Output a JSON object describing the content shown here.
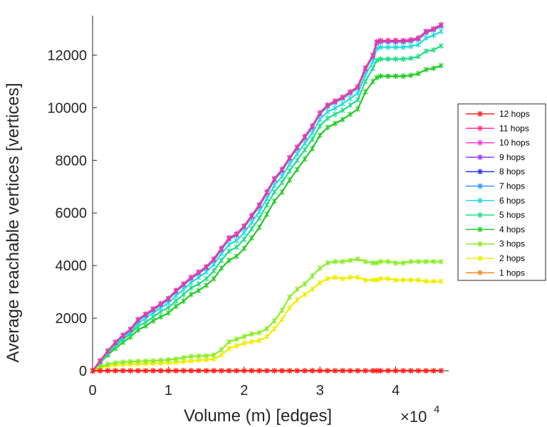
{
  "chart_data": {
    "type": "line",
    "title": "",
    "xlabel": "Volume (m) [edges]",
    "ylabel": "Average reachable vertices [vertices]",
    "x_multiplier_base": "×10",
    "x_multiplier_exp": "4",
    "xlim": [
      0,
      4.7
    ],
    "ylim": [
      0,
      13500
    ],
    "xticks": [
      0,
      1,
      2,
      3,
      4
    ],
    "xtick_labels": [
      "0",
      "1",
      "2",
      "3",
      "4"
    ],
    "yticks": [
      0,
      2000,
      4000,
      6000,
      8000,
      10000,
      12000
    ],
    "ytick_labels": [
      "0",
      "2000",
      "4000",
      "6000",
      "8000",
      "10000",
      "12000"
    ],
    "x": [
      0,
      0.1,
      0.2,
      0.3,
      0.4,
      0.5,
      0.6,
      0.7,
      0.8,
      0.9,
      1.0,
      1.1,
      1.2,
      1.3,
      1.4,
      1.5,
      1.6,
      1.7,
      1.8,
      1.9,
      2.0,
      2.1,
      2.2,
      2.3,
      2.4,
      2.5,
      2.6,
      2.7,
      2.8,
      2.9,
      3.0,
      3.1,
      3.2,
      3.3,
      3.4,
      3.5,
      3.6,
      3.7,
      3.75,
      3.8,
      3.9,
      4.0,
      4.1,
      4.2,
      4.3,
      4.4,
      4.5,
      4.6
    ],
    "legend_position": "right",
    "series": [
      {
        "name": "12 hops",
        "color": "#ff2020",
        "values": [
          0,
          0,
          0,
          0,
          0,
          0,
          0,
          0,
          0,
          0,
          0,
          0,
          0,
          0,
          0,
          0,
          0,
          0,
          0,
          0,
          0,
          0,
          0,
          0,
          0,
          0,
          0,
          0,
          0,
          0,
          0,
          0,
          0,
          0,
          0,
          0,
          0,
          0,
          0,
          0,
          0,
          0,
          0,
          0,
          0,
          0,
          0,
          0
        ]
      },
      {
        "name": "11 hops",
        "color": "#ff3399",
        "values": [
          0,
          380,
          750,
          1080,
          1350,
          1580,
          1950,
          2150,
          2350,
          2550,
          2750,
          3050,
          3300,
          3550,
          3750,
          3950,
          4250,
          4650,
          5050,
          5200,
          5500,
          5900,
          6300,
          6800,
          7300,
          7650,
          8100,
          8500,
          8900,
          9300,
          9800,
          10100,
          10250,
          10400,
          10600,
          10800,
          11500,
          12000,
          12500,
          12550,
          12550,
          12550,
          12550,
          12580,
          12650,
          12900,
          13000,
          13150
        ]
      },
      {
        "name": "10 hops",
        "color": "#ee33ee",
        "values": [
          0,
          380,
          750,
          1080,
          1350,
          1580,
          1950,
          2150,
          2350,
          2550,
          2750,
          3050,
          3300,
          3550,
          3750,
          3950,
          4250,
          4650,
          5050,
          5200,
          5500,
          5900,
          6300,
          6800,
          7300,
          7650,
          8100,
          8500,
          8900,
          9300,
          9800,
          10100,
          10250,
          10400,
          10600,
          10800,
          11500,
          12000,
          12500,
          12550,
          12550,
          12550,
          12550,
          12580,
          12650,
          12900,
          13000,
          13150
        ]
      },
      {
        "name": "9 hops",
        "color": "#9933ff",
        "values": [
          0,
          380,
          750,
          1080,
          1350,
          1580,
          1950,
          2150,
          2350,
          2550,
          2750,
          3050,
          3300,
          3550,
          3750,
          3950,
          4250,
          4650,
          5050,
          5200,
          5500,
          5900,
          6300,
          6800,
          7300,
          7650,
          8100,
          8500,
          8900,
          9300,
          9800,
          10100,
          10250,
          10400,
          10600,
          10800,
          11500,
          12000,
          12500,
          12550,
          12550,
          12550,
          12550,
          12580,
          12650,
          12900,
          13000,
          13150
        ]
      },
      {
        "name": "8 hops",
        "color": "#2233ee",
        "values": [
          0,
          380,
          750,
          1080,
          1350,
          1580,
          1950,
          2150,
          2350,
          2550,
          2750,
          3050,
          3300,
          3550,
          3750,
          3950,
          4250,
          4650,
          5050,
          5200,
          5500,
          5900,
          6300,
          6800,
          7300,
          7650,
          8100,
          8500,
          8900,
          9300,
          9800,
          10100,
          10250,
          10400,
          10600,
          10800,
          11500,
          12000,
          12500,
          12550,
          12550,
          12550,
          12550,
          12580,
          12650,
          12900,
          13000,
          13150
        ]
      },
      {
        "name": "7 hops",
        "color": "#3399ff",
        "values": [
          0,
          370,
          740,
          1060,
          1320,
          1550,
          1900,
          2100,
          2300,
          2500,
          2700,
          3000,
          3250,
          3500,
          3700,
          3900,
          4200,
          4600,
          5000,
          5150,
          5450,
          5850,
          6250,
          6750,
          7250,
          7600,
          8050,
          8450,
          8850,
          9250,
          9750,
          10050,
          10200,
          10350,
          10550,
          10750,
          11450,
          11950,
          12450,
          12500,
          12500,
          12500,
          12500,
          12530,
          12600,
          12850,
          12950,
          13100
        ]
      },
      {
        "name": "6 hops",
        "color": "#22dddd",
        "values": [
          0,
          350,
          700,
          1000,
          1250,
          1480,
          1800,
          2000,
          2200,
          2400,
          2580,
          2850,
          3100,
          3350,
          3550,
          3750,
          4050,
          4450,
          4800,
          4950,
          5250,
          5650,
          6050,
          6550,
          7050,
          7400,
          7850,
          8250,
          8650,
          9050,
          9550,
          9850,
          9980,
          10150,
          10350,
          10550,
          11250,
          11750,
          12250,
          12300,
          12300,
          12300,
          12300,
          12330,
          12400,
          12650,
          12750,
          12900
        ]
      },
      {
        "name": "5 hops",
        "color": "#22dd88",
        "values": [
          0,
          330,
          650,
          940,
          1180,
          1400,
          1700,
          1850,
          2050,
          2250,
          2400,
          2650,
          2900,
          3150,
          3300,
          3500,
          3800,
          4200,
          4550,
          4700,
          5000,
          5400,
          5800,
          6300,
          6800,
          7150,
          7600,
          8000,
          8400,
          8800,
          9300,
          9600,
          9750,
          9900,
          10100,
          10300,
          11000,
          11500,
          11800,
          11850,
          11850,
          11850,
          11850,
          11880,
          11950,
          12150,
          12200,
          12350
        ]
      },
      {
        "name": "4 hops",
        "color": "#22cc22",
        "values": [
          0,
          300,
          600,
          850,
          1080,
          1280,
          1550,
          1700,
          1900,
          2050,
          2200,
          2450,
          2650,
          2900,
          3050,
          3250,
          3500,
          3900,
          4200,
          4350,
          4650,
          5050,
          5450,
          5950,
          6450,
          6800,
          7250,
          7650,
          8050,
          8450,
          8950,
          9250,
          9400,
          9550,
          9750,
          9950,
          10600,
          11000,
          11150,
          11200,
          11200,
          11200,
          11200,
          11230,
          11300,
          11450,
          11500,
          11600
        ]
      },
      {
        "name": "3 hops",
        "color": "#88ee22",
        "values": [
          0,
          150,
          250,
          300,
          330,
          350,
          360,
          370,
          380,
          400,
          420,
          450,
          500,
          550,
          560,
          570,
          600,
          800,
          1100,
          1200,
          1300,
          1400,
          1450,
          1600,
          1900,
          2300,
          2800,
          3100,
          3300,
          3600,
          3900,
          4100,
          4150,
          4150,
          4200,
          4250,
          4150,
          4100,
          4100,
          4150,
          4150,
          4100,
          4100,
          4150,
          4150,
          4150,
          4150,
          4150
        ]
      },
      {
        "name": "2 hops",
        "color": "#eeee00",
        "values": [
          0,
          100,
          180,
          220,
          240,
          250,
          260,
          270,
          280,
          290,
          300,
          320,
          350,
          380,
          400,
          420,
          450,
          600,
          850,
          950,
          1050,
          1100,
          1150,
          1300,
          1600,
          1950,
          2400,
          2700,
          2900,
          3100,
          3350,
          3500,
          3550,
          3500,
          3550,
          3550,
          3450,
          3450,
          3450,
          3500,
          3500,
          3450,
          3450,
          3450,
          3450,
          3400,
          3400,
          3400
        ]
      },
      {
        "name": "1 hops",
        "color": "#ff8822",
        "values": [
          0,
          5,
          5,
          5,
          5,
          5,
          5,
          5,
          5,
          5,
          5,
          5,
          5,
          5,
          5,
          5,
          5,
          5,
          5,
          5,
          5,
          5,
          5,
          5,
          5,
          5,
          5,
          5,
          5,
          5,
          5,
          5,
          5,
          5,
          5,
          5,
          5,
          5,
          5,
          5,
          5,
          5,
          5,
          5,
          5,
          5,
          5,
          5
        ]
      }
    ]
  }
}
